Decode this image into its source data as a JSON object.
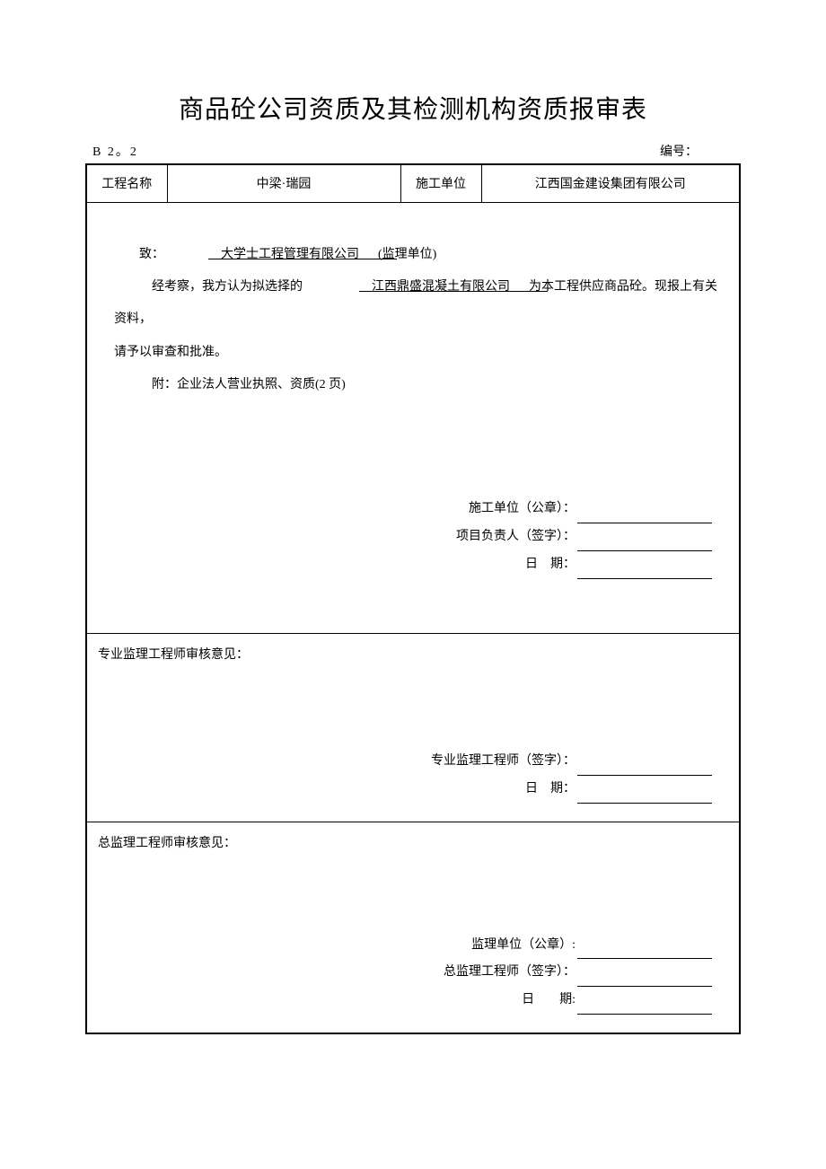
{
  "title": "商品砼公司资质及其检测机构资质报审表",
  "formNumber": "B 2。2",
  "serialLabel": "编号：",
  "infoRow": {
    "projectLabel": "工程名称",
    "projectName": "中梁·瑞园",
    "unitLabel": "施工单位",
    "unitName": "江西国金建设集团有限公司"
  },
  "section1": {
    "toPrefix": "致：",
    "recipient": "　大学士工程管理有限公司　　　",
    "recipientSuffix": "(监理单位)",
    "line2a": "经考察，我方认为拟选择的",
    "supplier": "　江西鼎盛混凝土有限公司　　　",
    "line2b": "为本工程供应商品砼。现报上有关资料，",
    "line3": "请予以审查和批准。",
    "line4": "附：企业法人营业执照、资质(2 页)",
    "sigUnit": "施工单位（公章）：",
    "sigManager": "项目负责人（签字）：",
    "sigDate": "日　期："
  },
  "section2": {
    "heading": "专业监理工程师审核意见：",
    "sigEngineer": "专业监理工程师（签字）：",
    "sigDate": "日　期："
  },
  "section3": {
    "heading": "总监理工程师审核意见：",
    "sigUnit": "监理单位（公章）:",
    "sigEngineer": "总监理工程师（签字）：",
    "sigDate": "日　　期:"
  }
}
